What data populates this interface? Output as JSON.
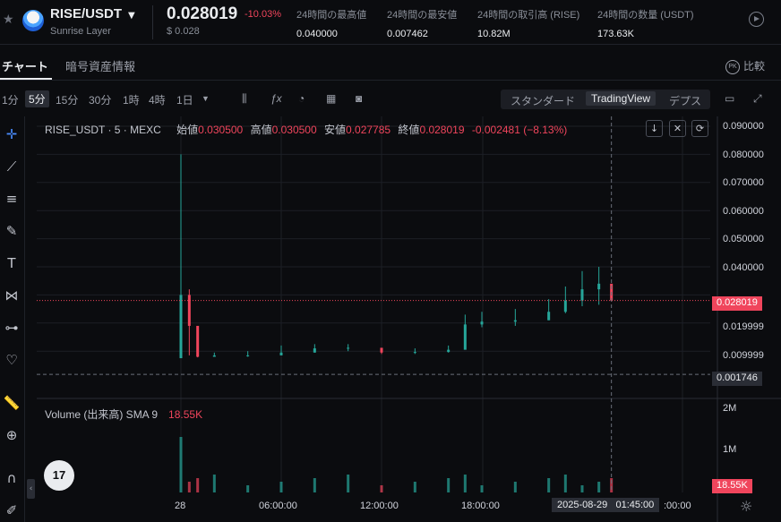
{
  "header": {
    "pair": "RISE/USDT",
    "name": "Sunrise Layer",
    "last_price": "0.028019",
    "change_pct": "-10.03%",
    "price_usd": "$ 0.028",
    "stats": [
      {
        "label": "24時間の最高値",
        "value": "0.040000"
      },
      {
        "label": "24時間の最安値",
        "value": "0.007462"
      },
      {
        "label": "24時間の取引高 (RISE)",
        "value": "10.82M"
      },
      {
        "label": "24時間の数量 (USDT)",
        "value": "173.63K"
      }
    ]
  },
  "tabs": [
    {
      "label": "チャート",
      "active": true
    },
    {
      "label": "暗号資産情報",
      "active": false
    }
  ],
  "compare_label": "比較",
  "compare_badge": "PK",
  "toolbar": {
    "timeframes": [
      "1分",
      "5分",
      "15分",
      "30分",
      "1時",
      "4時",
      "1日"
    ],
    "selected_timeframe": "5分",
    "views": [
      "スタンダード",
      "TradingView",
      "デプス"
    ],
    "selected_view": "TradingView"
  },
  "legend": {
    "symbol": "RISE_USDT · 5 · MEXC",
    "open_label": "始値",
    "open": "0.030500",
    "high_label": "高値",
    "high": "0.030500",
    "low_label": "安値",
    "low": "0.027785",
    "close_label": "終値",
    "close": "0.028019",
    "change": "-0.002481 (−8.13%)"
  },
  "volume_legend": {
    "label": "Volume (出来高) SMA 9",
    "value": "18.55K"
  },
  "y_axis": [
    "0.090000",
    "0.080000",
    "0.070000",
    "0.060000",
    "0.050000",
    "0.040000",
    "0.019999",
    "0.009999"
  ],
  "price_tag": "0.028019",
  "cursor_price_tag": "0.001746",
  "volume_axis": [
    "2M",
    "1M"
  ],
  "volume_tag": "18.55K",
  "x_axis": [
    "28",
    "06:00:00",
    "12:00:00",
    "18:00:00",
    ":00:00"
  ],
  "crosshair_date": "2025-08-29",
  "crosshair_time": "01:45:00",
  "logo_text": "17",
  "colors": {
    "up": "#26a69a",
    "down": "#f0455c",
    "background": "#0b0c0f"
  },
  "chart_data": {
    "type": "candlestick",
    "interval": "5m",
    "x": [
      "2025-08-28 00:00",
      "2025-08-28 00:30",
      "2025-08-28 01:00",
      "2025-08-28 02:00",
      "2025-08-28 04:00",
      "2025-08-28 06:00",
      "2025-08-28 08:00",
      "2025-08-28 10:00",
      "2025-08-28 12:00",
      "2025-08-28 14:00",
      "2025-08-28 16:00",
      "2025-08-28 17:00",
      "2025-08-28 18:00",
      "2025-08-28 20:00",
      "2025-08-28 22:00",
      "2025-08-28 23:00",
      "2025-08-29 00:00",
      "2025-08-29 01:00",
      "2025-08-29 01:45"
    ],
    "close": [
      0.03,
      0.019,
      0.008,
      0.0085,
      0.0085,
      0.0095,
      0.011,
      0.0112,
      0.0095,
      0.0097,
      0.0105,
      0.0195,
      0.0205,
      0.021,
      0.024,
      0.028,
      0.032,
      0.034,
      0.028019
    ],
    "high": [
      0.08,
      0.032,
      0.015,
      0.0095,
      0.01,
      0.012,
      0.0125,
      0.0125,
      0.011,
      0.011,
      0.012,
      0.023,
      0.024,
      0.025,
      0.0285,
      0.033,
      0.0385,
      0.04,
      0.0305
    ],
    "low": [
      0.0075,
      0.0085,
      0.0078,
      0.008,
      0.008,
      0.0085,
      0.0095,
      0.01,
      0.009,
      0.009,
      0.0095,
      0.014,
      0.0185,
      0.019,
      0.021,
      0.0235,
      0.026,
      0.0265,
      0.027785
    ],
    "ylim": [
      0.0,
      0.09
    ]
  }
}
